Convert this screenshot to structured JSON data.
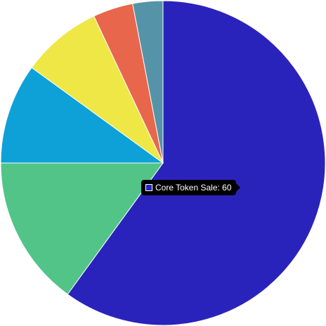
{
  "chart_data": {
    "type": "pie",
    "categories": [
      "Core Token Sale",
      "",
      "",
      "",
      "",
      ""
    ],
    "values": [
      60,
      15,
      10,
      8,
      4,
      3
    ],
    "colors": [
      "#2a23bb",
      "#52c488",
      "#0da1d8",
      "#eee745",
      "#e8664b",
      "#5594a8"
    ],
    "title": "",
    "legend": "none"
  },
  "tooltip": {
    "label": "Core Token Sale",
    "value": "60",
    "text": "Core Token Sale: 60",
    "color": "#2a23bb"
  }
}
